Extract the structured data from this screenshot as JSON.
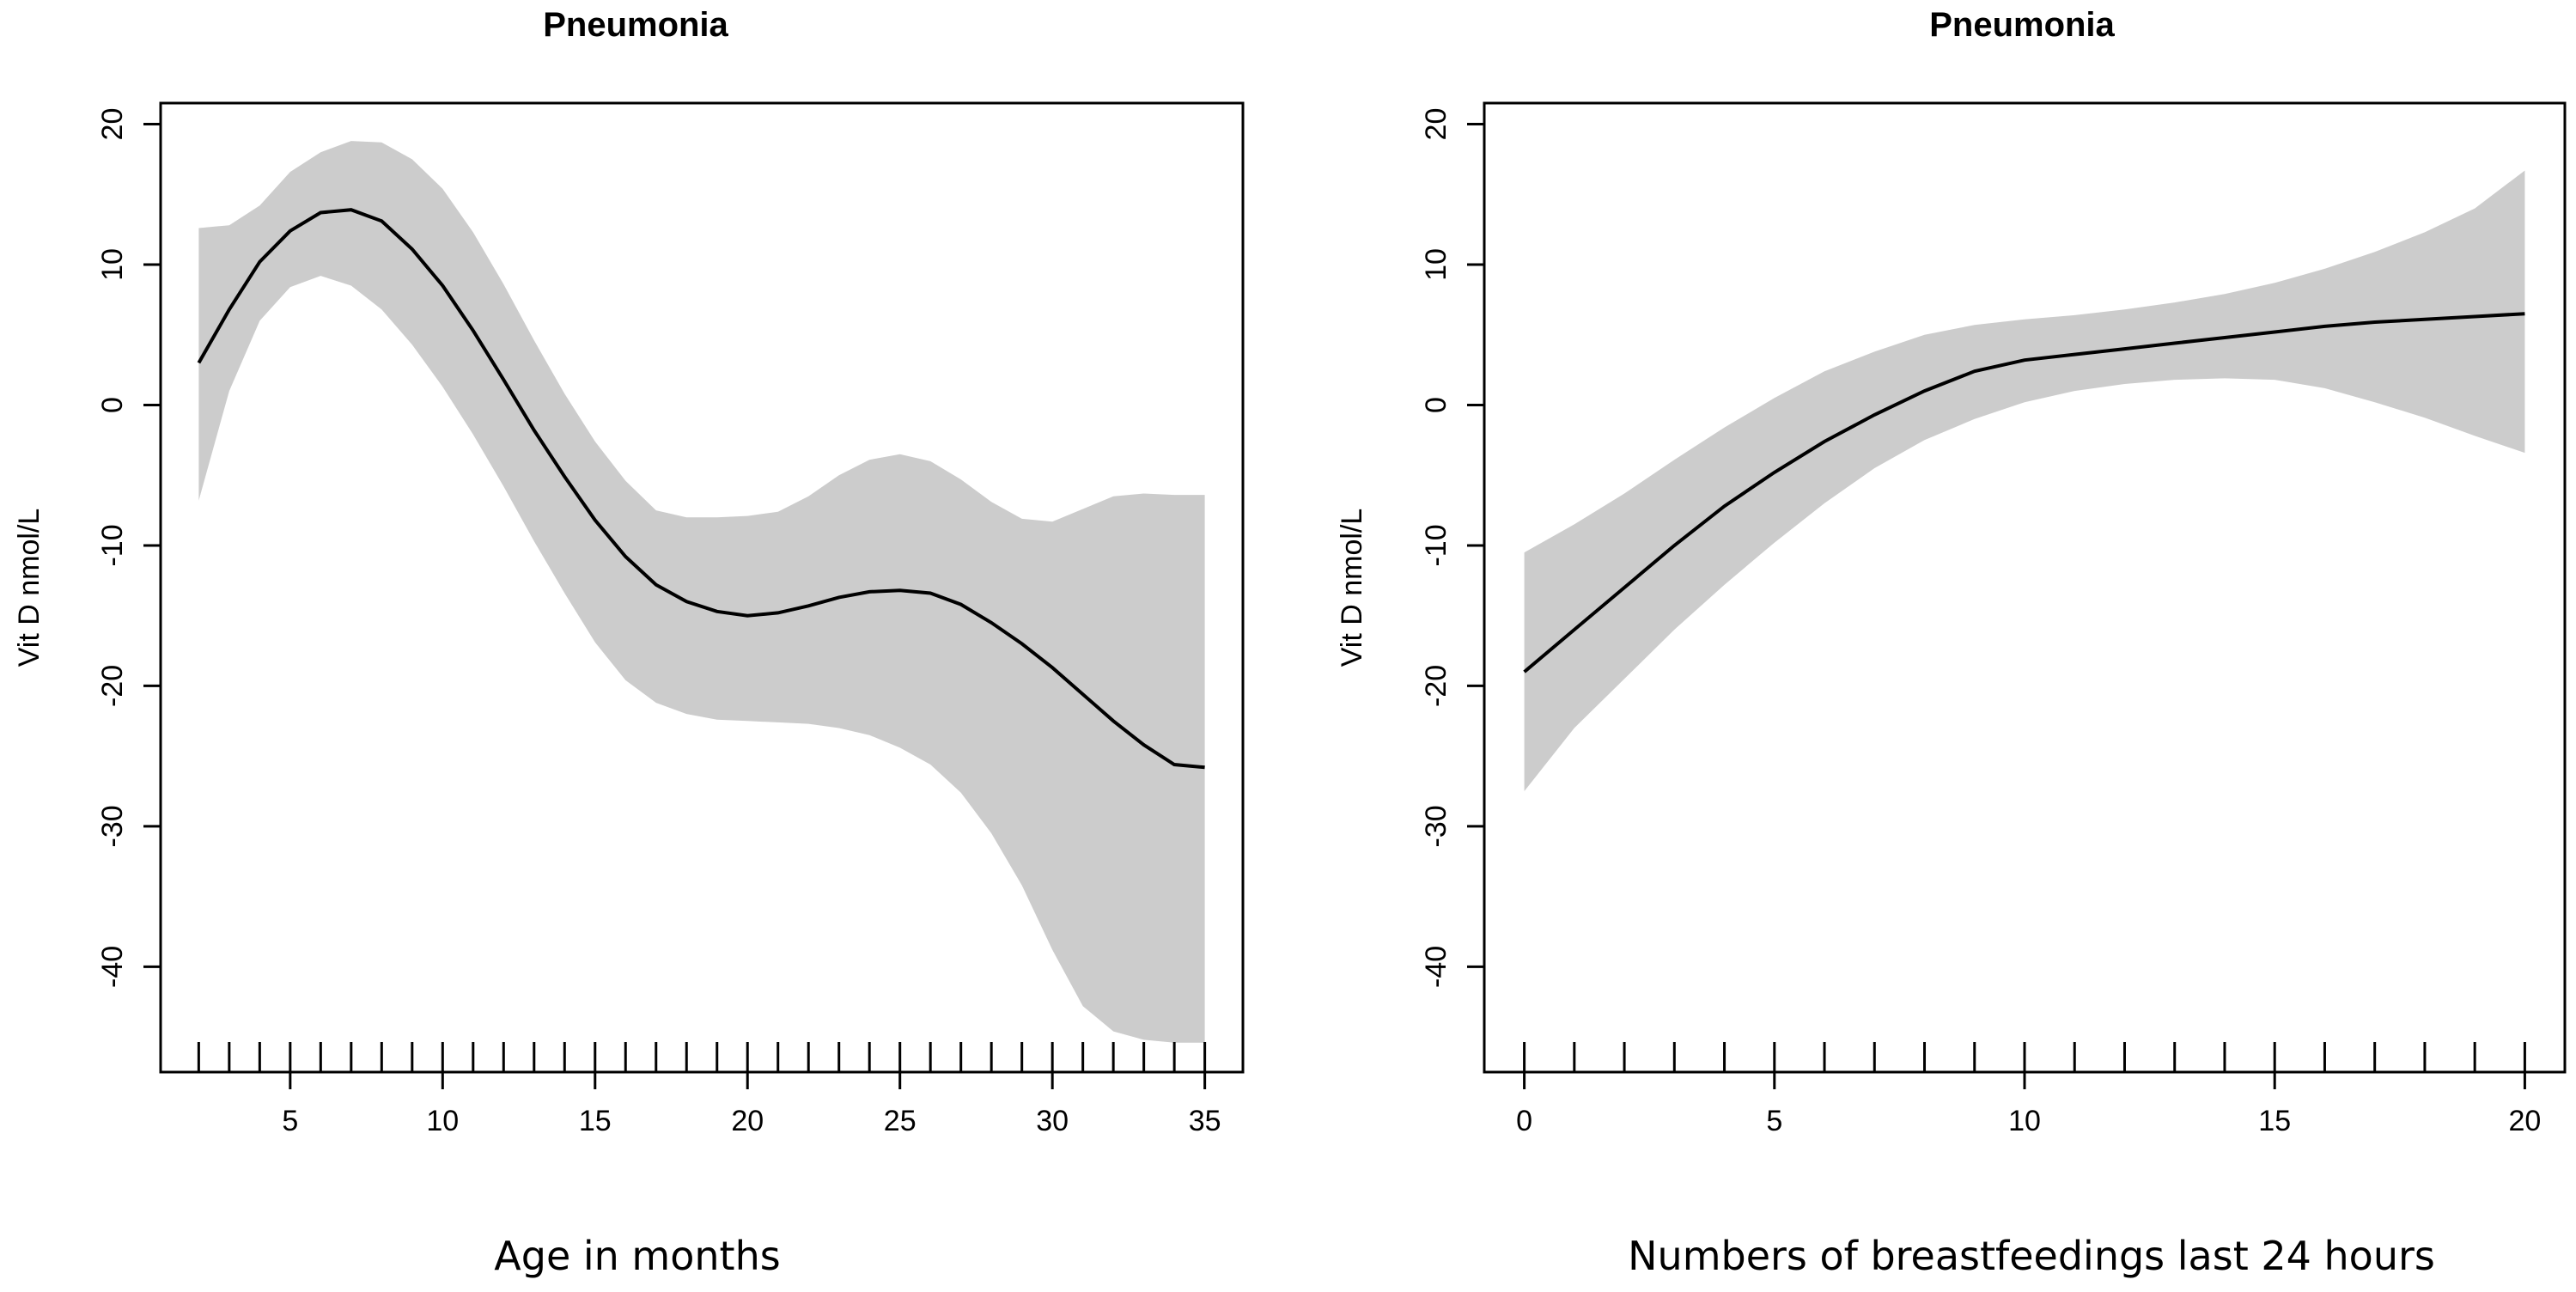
{
  "chart_data": [
    {
      "type": "line",
      "title": "Pneumonia",
      "xlabel": "Age in months",
      "ylabel": "Vit D nmol/L",
      "xlim": [
        0.75,
        36.25
      ],
      "ylim": [
        -47.5,
        21.5
      ],
      "x_ticks": [
        5,
        10,
        15,
        20,
        25,
        30,
        35
      ],
      "y_ticks": [
        -40,
        -30,
        -20,
        -10,
        0,
        10,
        20
      ],
      "x": [
        2,
        3,
        4,
        5,
        6,
        7,
        8,
        9,
        10,
        11,
        12,
        13,
        14,
        15,
        16,
        17,
        18,
        19,
        20,
        21,
        22,
        23,
        24,
        25,
        26,
        27,
        28,
        29,
        30,
        31,
        32,
        33,
        34,
        35
      ],
      "series": [
        {
          "name": "fit",
          "values": [
            3.0,
            6.8,
            10.2,
            12.4,
            13.7,
            13.9,
            13.1,
            11.1,
            8.5,
            5.3,
            1.8,
            -1.8,
            -5.1,
            -8.2,
            -10.8,
            -12.8,
            -14.0,
            -14.7,
            -15.0,
            -14.8,
            -14.3,
            -13.7,
            -13.3,
            -13.2,
            -13.4,
            -14.2,
            -15.5,
            -17.0,
            -18.7,
            -20.6,
            -22.5,
            -24.2,
            -25.6,
            -25.8
          ]
        },
        {
          "name": "upper",
          "values": [
            12.6,
            12.8,
            14.2,
            16.6,
            18.0,
            18.8,
            18.7,
            17.5,
            15.4,
            12.3,
            8.6,
            4.6,
            0.8,
            -2.6,
            -5.4,
            -7.5,
            -8.0,
            -8.0,
            -7.9,
            -7.6,
            -6.5,
            -5.0,
            -3.9,
            -3.5,
            -4.0,
            -5.3,
            -6.9,
            -8.1,
            -8.3,
            -7.4,
            -6.5,
            -6.3,
            -6.4,
            -6.4
          ]
        },
        {
          "name": "lower",
          "values": [
            -6.8,
            1.0,
            6.0,
            8.4,
            9.2,
            8.5,
            6.8,
            4.3,
            1.3,
            -2.1,
            -5.8,
            -9.7,
            -13.4,
            -16.9,
            -19.6,
            -21.2,
            -22.0,
            -22.4,
            -22.5,
            -22.6,
            -22.7,
            -23.0,
            -23.5,
            -24.4,
            -25.6,
            -27.6,
            -30.5,
            -34.2,
            -38.8,
            -42.8,
            -44.6,
            -45.2,
            -45.4,
            -45.4
          ]
        }
      ],
      "rug": [
        2,
        3,
        4,
        5,
        6,
        7,
        8,
        9,
        10,
        11,
        12,
        13,
        14,
        15,
        16,
        17,
        18,
        19,
        20,
        21,
        22,
        23,
        24,
        25,
        26,
        27,
        28,
        29,
        30,
        31,
        32,
        33,
        34,
        35
      ]
    },
    {
      "type": "line",
      "title": "Pneumonia",
      "xlabel": "Numbers of breastfeedings last 24 hours",
      "ylabel": "Vit D nmol/L",
      "xlim": [
        -0.8,
        20.8
      ],
      "ylim": [
        -47.5,
        21.5
      ],
      "x_ticks": [
        0,
        5,
        10,
        15,
        20
      ],
      "y_ticks": [
        -40,
        -30,
        -20,
        -10,
        0,
        10,
        20
      ],
      "x": [
        0,
        1,
        2,
        3,
        4,
        5,
        6,
        7,
        8,
        9,
        10,
        11,
        12,
        13,
        14,
        15,
        16,
        17,
        18,
        19,
        20
      ],
      "series": [
        {
          "name": "fit",
          "values": [
            -19.0,
            -16.0,
            -13.0,
            -10.0,
            -7.2,
            -4.8,
            -2.6,
            -0.7,
            1.0,
            2.4,
            3.2,
            3.6,
            4.0,
            4.4,
            4.8,
            5.2,
            5.6,
            5.9,
            6.1,
            6.3,
            6.5
          ]
        },
        {
          "name": "upper",
          "values": [
            -10.5,
            -8.5,
            -6.3,
            -3.9,
            -1.6,
            0.5,
            2.4,
            3.8,
            5.0,
            5.7,
            6.1,
            6.4,
            6.8,
            7.3,
            7.9,
            8.7,
            9.7,
            10.9,
            12.3,
            14.0,
            16.7
          ]
        },
        {
          "name": "lower",
          "values": [
            -27.5,
            -23.0,
            -19.5,
            -16.0,
            -12.8,
            -9.8,
            -7.0,
            -4.5,
            -2.5,
            -1.0,
            0.2,
            1.0,
            1.5,
            1.8,
            1.9,
            1.8,
            1.2,
            0.2,
            -0.9,
            -2.2,
            -3.4
          ]
        }
      ],
      "rug": [
        0,
        1,
        2,
        3,
        4,
        5,
        6,
        7,
        8,
        9,
        10,
        11,
        12,
        13,
        14,
        15,
        16,
        17,
        18,
        19,
        20
      ]
    }
  ]
}
